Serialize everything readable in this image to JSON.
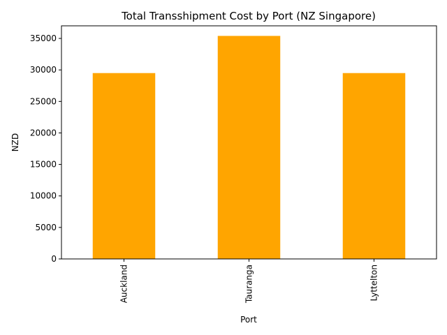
{
  "chart_data": {
    "type": "bar",
    "title": "Total Transshipment Cost by Port (NZ  Singapore)",
    "xlabel": "Port",
    "ylabel": "NZD",
    "categories": [
      "Auckland",
      "Tauranga",
      "Lyttelton"
    ],
    "values": [
      29500,
      35400,
      29500
    ],
    "ylim": [
      0,
      37000
    ],
    "yticks": [
      0,
      5000,
      10000,
      15000,
      20000,
      25000,
      30000,
      35000
    ],
    "bar_color": "#ffa500",
    "grid": false,
    "legend": "none"
  }
}
